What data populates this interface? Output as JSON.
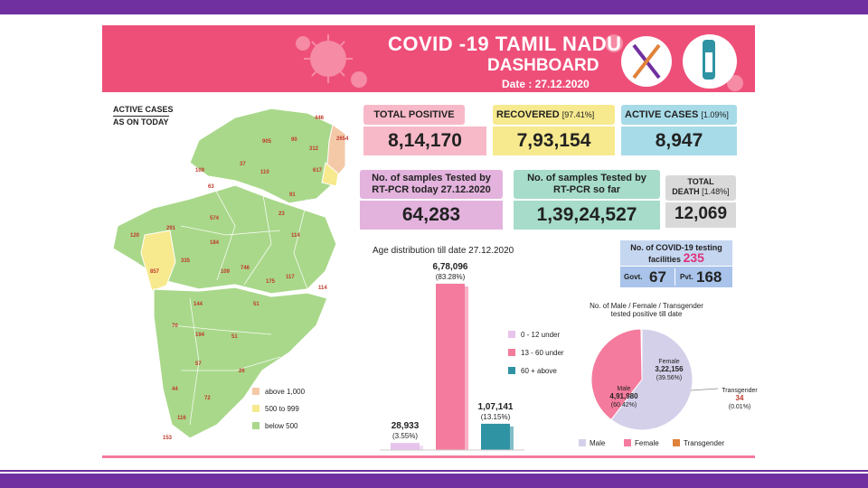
{
  "header": {
    "title_line1": "COVID -19 TAMIL NADU",
    "title_line2": "DASHBOARD",
    "date": "Date : 27.12.2020"
  },
  "map": {
    "legend_title_line1": "ACTIVE CASES",
    "legend_title_line2": "AS ON TODAY",
    "legend": [
      {
        "label": "above 1,000",
        "color": "#f4c9a8"
      },
      {
        "label": "500 to 999",
        "color": "#f7e98e"
      },
      {
        "label": "below 500",
        "color": "#a9d88a"
      }
    ],
    "district_values": [
      "446",
      "2654",
      "905",
      "90",
      "312",
      "37",
      "617",
      "109",
      "110",
      "63",
      "91",
      "574",
      "23",
      "291",
      "120",
      "184",
      "114",
      "335",
      "857",
      "109",
      "746",
      "175",
      "117",
      "144",
      "114",
      "51",
      "70",
      "194",
      "51",
      "57",
      "26",
      "72",
      "116",
      "44",
      "153"
    ]
  },
  "stats": {
    "total_positive": {
      "label": "TOTAL POSITIVE",
      "value": "8,14,170"
    },
    "recovered": {
      "label": "RECOVERED",
      "pct": "[97.41%]",
      "value": "7,93,154"
    },
    "active": {
      "label": "ACTIVE CASES",
      "pct": "[1.09%]",
      "value": "8,947"
    },
    "tested_today": {
      "label_line1": "No. of samples Tested by",
      "label_line2": "RT-PCR today 27.12.2020",
      "value": "64,283"
    },
    "tested_so_far": {
      "label_line1": "No. of samples Tested by",
      "label_line2": "RT-PCR so far",
      "value": "1,39,24,527"
    },
    "deaths": {
      "label_line1": "TOTAL",
      "label_line2": "DEATH",
      "pct": "[1.48%]",
      "value": "12,069"
    },
    "testing_facilities": {
      "label_line1": "No. of COVID-19 testing",
      "label_line2": "facilities",
      "total": "235",
      "govt_label": "Govt.",
      "govt_value": "67",
      "pvt_label": "Pvt.",
      "pvt_value": "168"
    }
  },
  "age_chart": {
    "title": "Age distribution till date 27.12.2020",
    "legend": [
      {
        "label": "0 - 12 under",
        "color": "#e7c4ec"
      },
      {
        "label": "13 - 60 under",
        "color": "#f47b9d"
      },
      {
        "label": "60 + above",
        "color": "#2f93a3"
      }
    ]
  },
  "gender_chart": {
    "title_line1": "No. of Male / Female / Transgender",
    "title_line2": "tested positive till date",
    "legend": [
      {
        "label": "Male",
        "color": "#d5d0ea"
      },
      {
        "label": "Female",
        "color": "#f47b9d"
      },
      {
        "label": "Transgender",
        "color": "#e0823a"
      }
    ]
  },
  "chart_data": [
    {
      "type": "bar",
      "title": "Age distribution till date 27.12.2020",
      "categories": [
        "0 - 12 under",
        "13 - 60 under",
        "60 + above"
      ],
      "values": [
        28933,
        678096,
        107141
      ],
      "value_labels": [
        "28,933",
        "6,78,096",
        "1,07,141"
      ],
      "pct_labels": [
        "(3.55%)",
        "(83.28%)",
        "(13.15%)"
      ],
      "colors": [
        "#e7c4ec",
        "#f47b9d",
        "#2f93a3"
      ],
      "ylim": [
        0,
        700000
      ]
    },
    {
      "type": "pie",
      "title": "No. of Male / Female / Transgender tested positive till date",
      "categories": [
        "Male",
        "Female",
        "Transgender"
      ],
      "values": [
        491980,
        322156,
        34
      ],
      "value_labels": [
        "4,91,980",
        "3,22,156",
        "34"
      ],
      "pct_labels": [
        "(60.42%)",
        "(39.56%)",
        "(0.01%)"
      ],
      "colors": [
        "#d5d0ea",
        "#f47b9d",
        "#e0823a"
      ]
    }
  ]
}
